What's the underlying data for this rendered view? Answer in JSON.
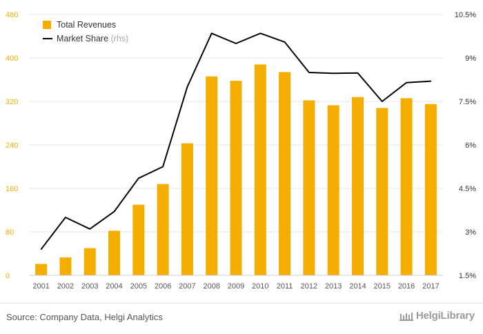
{
  "chart_data": {
    "type": "bar",
    "categories": [
      "2001",
      "2002",
      "2003",
      "2004",
      "2005",
      "2006",
      "2007",
      "2008",
      "2009",
      "2010",
      "2011",
      "2012",
      "2013",
      "2014",
      "2015",
      "2016",
      "2017"
    ],
    "series": [
      {
        "name": "Total Revenues",
        "kind": "bar",
        "axis": "left",
        "color": "#f5ae00",
        "values": [
          21,
          33,
          50,
          82,
          130,
          168,
          243,
          366,
          358,
          388,
          374,
          322,
          313,
          328,
          308,
          326,
          315
        ]
      },
      {
        "name": "Market Share",
        "name_suffix": "(rhs)",
        "kind": "line",
        "axis": "right",
        "color": "#000000",
        "values": [
          2.4,
          3.5,
          3.1,
          3.7,
          4.85,
          5.25,
          8.0,
          9.85,
          9.5,
          9.85,
          9.55,
          8.5,
          8.47,
          8.48,
          7.5,
          8.15,
          8.2
        ]
      }
    ],
    "y_left": {
      "ylim": [
        0,
        480
      ],
      "ticks": [
        "0",
        "80",
        "160",
        "240",
        "320",
        "400",
        "480"
      ]
    },
    "y_right": {
      "ylim": [
        1.5,
        10.5
      ],
      "ticks": [
        "1.5%",
        "3%",
        "4.5%",
        "6%",
        "7.5%",
        "9%",
        "10.5%"
      ]
    },
    "grid": true,
    "legend_position": "top-left"
  },
  "footer": {
    "source": "Source: Company Data, Helgi Analytics",
    "logo_text": "HelgiLibrary"
  },
  "colors": {
    "bar": "#f5ae00",
    "line": "#000000",
    "grid": "#e6e6e6",
    "left_tick": "#f5ae00",
    "right_tick": "#333333",
    "rhs_suffix": "#aaaaaa"
  }
}
